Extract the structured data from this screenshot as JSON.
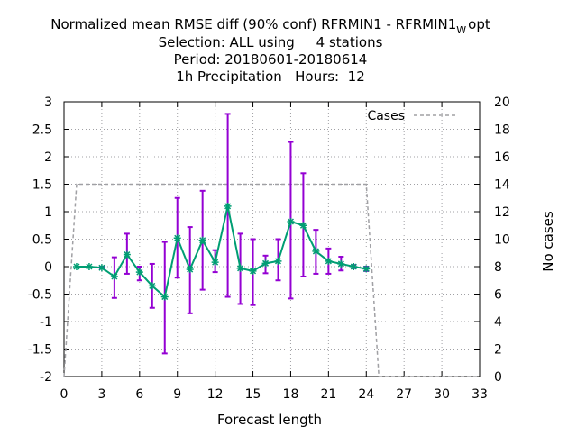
{
  "chart_data": {
    "type": "line",
    "title_lines": [
      "Normalized mean RMSE diff (90% conf) RFRMIN1 - RFRMIN1",
      "Selection: ALL using     4 stations",
      "Period: 20180601-20180614",
      "1h Precipitation   Hours:  12"
    ],
    "title_subscript": "W",
    "title_suffix": "opt",
    "xlabel": "Forecast length",
    "ylabel": "",
    "y2label": "No cases",
    "xlim": [
      0,
      33
    ],
    "ylim": [
      -2,
      3
    ],
    "y2lim": [
      0,
      20
    ],
    "xticks": [
      0,
      3,
      6,
      9,
      12,
      15,
      18,
      21,
      24,
      27,
      30,
      33
    ],
    "yticks": [
      -2,
      -1.5,
      -1,
      -0.5,
      0,
      0.5,
      1,
      1.5,
      2,
      2.5,
      3
    ],
    "y2ticks": [
      0,
      2,
      4,
      6,
      8,
      10,
      12,
      14,
      16,
      18,
      20
    ],
    "grid": true,
    "legend": {
      "position": "top-right",
      "entries": [
        "Cases"
      ]
    },
    "colors": {
      "line": "#009e73",
      "errorbar": "#9400d3",
      "cases": "#a0a0a4",
      "grid": "#a0a0a4"
    },
    "series": [
      {
        "x": [
          1,
          2,
          3,
          4,
          5,
          6,
          7,
          8,
          9,
          10,
          11,
          12,
          13,
          14,
          15,
          16,
          17,
          18,
          19,
          20,
          21,
          22,
          23,
          24
        ],
        "y": [
          0,
          0,
          -0.02,
          -0.18,
          0.22,
          -0.1,
          -0.35,
          -0.55,
          0.52,
          -0.05,
          0.48,
          0.08,
          1.1,
          -0.03,
          -0.08,
          0.06,
          0.1,
          0.82,
          0.75,
          0.28,
          0.1,
          0.05,
          0.0,
          -0.04
        ],
        "low": [
          0,
          0,
          -0.03,
          -0.57,
          -0.13,
          -0.25,
          -0.75,
          -1.58,
          -0.2,
          -0.85,
          -0.42,
          -0.1,
          -0.55,
          -0.68,
          -0.7,
          -0.12,
          -0.25,
          -0.58,
          -0.18,
          -0.13,
          -0.13,
          -0.07,
          -0.03,
          -0.08
        ],
        "high": [
          0,
          0,
          0.0,
          0.17,
          0.6,
          0.0,
          0.05,
          0.45,
          1.25,
          0.72,
          1.38,
          0.3,
          2.78,
          0.6,
          0.5,
          0.2,
          0.5,
          2.27,
          1.7,
          0.67,
          0.33,
          0.18,
          0.03,
          0.0
        ]
      },
      {
        "name": "Cases",
        "axis": "y2",
        "x": [
          0,
          1,
          2,
          3,
          4,
          5,
          6,
          7,
          8,
          9,
          10,
          11,
          12,
          13,
          14,
          15,
          16,
          17,
          18,
          19,
          20,
          21,
          22,
          23,
          24,
          25,
          26,
          27,
          28,
          29,
          30,
          31,
          32,
          33
        ],
        "y": [
          0,
          14,
          14,
          14,
          14,
          14,
          14,
          14,
          14,
          14,
          14,
          14,
          14,
          14,
          14,
          14,
          14,
          14,
          14,
          14,
          14,
          14,
          14,
          14,
          14,
          0,
          0,
          0,
          0,
          0,
          0,
          0,
          0,
          0
        ]
      }
    ]
  }
}
